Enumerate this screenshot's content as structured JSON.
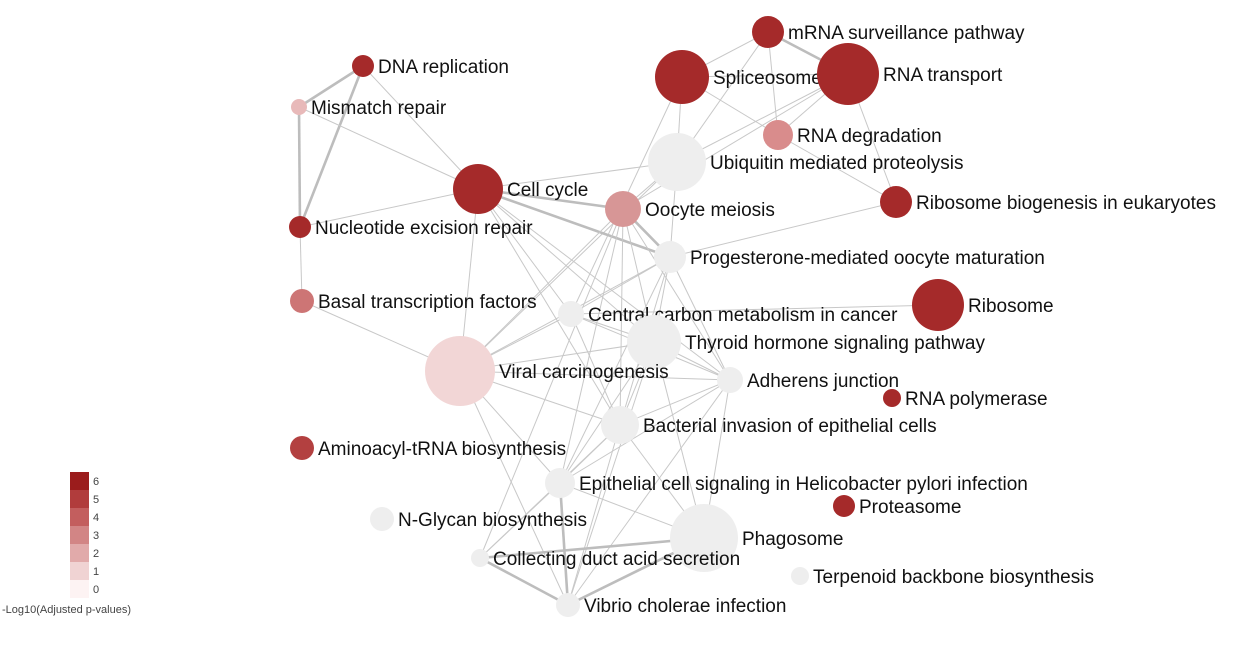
{
  "legend": {
    "title": "-Log10(Adjusted p-values)",
    "levels": [
      {
        "value": "6",
        "color": "#9b1c1c"
      },
      {
        "value": "5",
        "color": "#b13c3c"
      },
      {
        "value": "4",
        "color": "#c35e5e"
      },
      {
        "value": "3",
        "color": "#d28585"
      },
      {
        "value": "2",
        "color": "#e1aaaa"
      },
      {
        "value": "1",
        "color": "#f0d3d3"
      },
      {
        "value": "0",
        "color": "#fdf3f3"
      }
    ]
  },
  "nodes": [
    {
      "id": "mrna",
      "label": "mRNA surveillance pathway",
      "color": "#a52a2a"
    },
    {
      "id": "dnarep",
      "label": "DNA replication",
      "color": "#a52a2a"
    },
    {
      "id": "splice",
      "label": "Spliceosome",
      "color": "#a52a2a"
    },
    {
      "id": "rnatr",
      "label": "RNA transport",
      "color": "#a52a2a"
    },
    {
      "id": "mismatch",
      "label": "Mismatch repair",
      "color": "#e8b9b9"
    },
    {
      "id": "rnadeg",
      "label": "RNA degradation",
      "color": "#d98c8c"
    },
    {
      "id": "ubiq",
      "label": "Ubiquitin mediated proteolysis",
      "color": "#eeeeee"
    },
    {
      "id": "cellcycle",
      "label": "Cell cycle",
      "color": "#a52a2a"
    },
    {
      "id": "ribobio",
      "label": "Ribosome biogenesis in eukaryotes",
      "color": "#a52a2a"
    },
    {
      "id": "oocyte",
      "label": "Oocyte meiosis",
      "color": "#d79696"
    },
    {
      "id": "ner",
      "label": "Nucleotide excision repair",
      "color": "#a52a2a"
    },
    {
      "id": "proges",
      "label": "Progesterone-mediated oocyte maturation",
      "color": "#eeeeee"
    },
    {
      "id": "basal",
      "label": "Basal transcription factors",
      "color": "#cd7575"
    },
    {
      "id": "ribosome",
      "label": "Ribosome",
      "color": "#a52a2a"
    },
    {
      "id": "ccm",
      "label": "Central carbon metabolism in cancer",
      "color": "#eeeeee"
    },
    {
      "id": "thyroid",
      "label": "Thyroid hormone signaling pathway",
      "color": "#eeeeee"
    },
    {
      "id": "viral",
      "label": "Viral carcinogenesis",
      "color": "#f2d6d6"
    },
    {
      "id": "adherens",
      "label": "Adherens junction",
      "color": "#eeeeee"
    },
    {
      "id": "rnapol",
      "label": "RNA polymerase",
      "color": "#a52a2a"
    },
    {
      "id": "bacterial",
      "label": "Bacterial invasion of epithelial cells",
      "color": "#eeeeee"
    },
    {
      "id": "aminoacyl",
      "label": "Aminoacyl-tRNA biosynthesis",
      "color": "#b34040"
    },
    {
      "id": "helico",
      "label": "Epithelial cell signaling in Helicobacter pylori infection",
      "color": "#eeeeee"
    },
    {
      "id": "proteasome",
      "label": "Proteasome",
      "color": "#a52a2a"
    },
    {
      "id": "nglycan",
      "label": "N-Glycan biosynthesis",
      "color": "#eeeeee"
    },
    {
      "id": "phago",
      "label": "Phagosome",
      "color": "#eeeeee"
    },
    {
      "id": "collect",
      "label": "Collecting duct acid secretion",
      "color": "#eeeeee"
    },
    {
      "id": "terpenoid",
      "label": "Terpenoid backbone biosynthesis",
      "color": "#eeeeee"
    },
    {
      "id": "vibrio",
      "label": "Vibrio cholerae infection",
      "color": "#eeeeee"
    }
  ],
  "edges": [
    [
      "dnarep",
      "mismatch",
      "thick"
    ],
    [
      "dnarep",
      "ner",
      "thick"
    ],
    [
      "dnarep",
      "cellcycle",
      "thin"
    ],
    [
      "mismatch",
      "ner",
      "thick"
    ],
    [
      "mismatch",
      "cellcycle",
      "thin"
    ],
    [
      "ner",
      "basal",
      "thin"
    ],
    [
      "ner",
      "cellcycle",
      "thin"
    ],
    [
      "mrna",
      "splice",
      "thin"
    ],
    [
      "mrna",
      "rnatr",
      "thick"
    ],
    [
      "mrna",
      "ubiq",
      "thin"
    ],
    [
      "mrna",
      "rnadeg",
      "thin"
    ],
    [
      "splice",
      "rnatr",
      "thin"
    ],
    [
      "splice",
      "rnadeg",
      "thin"
    ],
    [
      "splice",
      "ubiq",
      "thin"
    ],
    [
      "splice",
      "ccm",
      "thin"
    ],
    [
      "rnatr",
      "rnadeg",
      "thin"
    ],
    [
      "rnatr",
      "ribobio",
      "thin"
    ],
    [
      "rnatr",
      "ubiq",
      "thin"
    ],
    [
      "rnatr",
      "oocyte",
      "thin"
    ],
    [
      "rnadeg",
      "ribobio",
      "thin"
    ],
    [
      "ubiq",
      "cellcycle",
      "thin"
    ],
    [
      "ubiq",
      "oocyte",
      "thin"
    ],
    [
      "ubiq",
      "proges",
      "thin"
    ],
    [
      "ubiq",
      "viral",
      "thin"
    ],
    [
      "cellcycle",
      "oocyte",
      "thick"
    ],
    [
      "cellcycle",
      "proges",
      "thick"
    ],
    [
      "cellcycle",
      "viral",
      "thin"
    ],
    [
      "cellcycle",
      "thyroid",
      "thin"
    ],
    [
      "cellcycle",
      "adherens",
      "thin"
    ],
    [
      "cellcycle",
      "bacterial",
      "thin"
    ],
    [
      "cellcycle",
      "ccm",
      "thin"
    ],
    [
      "oocyte",
      "proges",
      "thick"
    ],
    [
      "oocyte",
      "viral",
      "thin"
    ],
    [
      "oocyte",
      "thyroid",
      "thin"
    ],
    [
      "oocyte",
      "bacterial",
      "thin"
    ],
    [
      "oocyte",
      "helico",
      "thin"
    ],
    [
      "oocyte",
      "collect",
      "thin"
    ],
    [
      "oocyte",
      "adherens",
      "thin"
    ],
    [
      "proges",
      "viral",
      "thin"
    ],
    [
      "proges",
      "thyroid",
      "thin"
    ],
    [
      "proges",
      "ccm",
      "thin"
    ],
    [
      "proges",
      "adherens",
      "thin"
    ],
    [
      "proges",
      "bacterial",
      "thin"
    ],
    [
      "proges",
      "helico",
      "thin"
    ],
    [
      "proges",
      "ribobio",
      "thin"
    ],
    [
      "ccm",
      "viral",
      "thin"
    ],
    [
      "ccm",
      "thyroid",
      "thin"
    ],
    [
      "ccm",
      "adherens",
      "thin"
    ],
    [
      "ccm",
      "bacterial",
      "thin"
    ],
    [
      "ccm",
      "ribosome",
      "thin"
    ],
    [
      "thyroid",
      "viral",
      "thin"
    ],
    [
      "thyroid",
      "adherens",
      "thin"
    ],
    [
      "thyroid",
      "bacterial",
      "thin"
    ],
    [
      "thyroid",
      "helico",
      "thin"
    ],
    [
      "thyroid",
      "vibrio",
      "thin"
    ],
    [
      "thyroid",
      "phago",
      "thin"
    ],
    [
      "viral",
      "adherens",
      "thin"
    ],
    [
      "viral",
      "bacterial",
      "thin"
    ],
    [
      "viral",
      "helico",
      "thin"
    ],
    [
      "viral",
      "basal",
      "thin"
    ],
    [
      "viral",
      "vibrio",
      "thin"
    ],
    [
      "adherens",
      "bacterial",
      "thin"
    ],
    [
      "adherens",
      "helico",
      "thin"
    ],
    [
      "adherens",
      "vibrio",
      "thin"
    ],
    [
      "adherens",
      "phago",
      "thin"
    ],
    [
      "bacterial",
      "helico",
      "thin"
    ],
    [
      "bacterial",
      "phago",
      "thin"
    ],
    [
      "bacterial",
      "vibrio",
      "thin"
    ],
    [
      "bacterial",
      "collect",
      "thin"
    ],
    [
      "helico",
      "vibrio",
      "thick"
    ],
    [
      "helico",
      "phago",
      "thin"
    ],
    [
      "helico",
      "collect",
      "thin"
    ],
    [
      "collect",
      "phago",
      "thick"
    ],
    [
      "collect",
      "vibrio",
      "thick"
    ],
    [
      "phago",
      "vibrio",
      "thick"
    ]
  ]
}
